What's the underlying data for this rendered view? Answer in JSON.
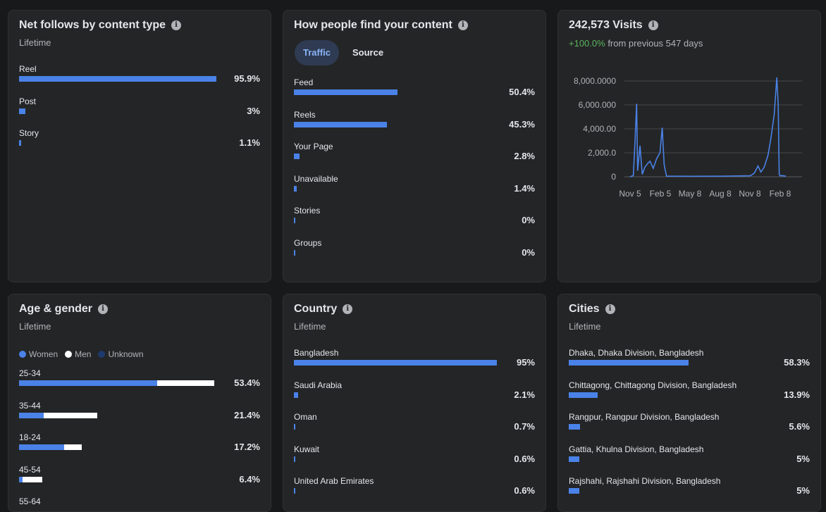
{
  "net_follows": {
    "title": "Net follows by content type",
    "subtitle": "Lifetime",
    "rows": [
      {
        "label": "Reel",
        "value": "95.9%",
        "pct": 95.9
      },
      {
        "label": "Post",
        "value": "3%",
        "pct": 3
      },
      {
        "label": "Story",
        "value": "1.1%",
        "pct": 1.1
      }
    ]
  },
  "find_content": {
    "title": "How people find your content",
    "tabs": [
      "Traffic",
      "Source"
    ],
    "active_tab": "Traffic",
    "rows": [
      {
        "label": "Feed",
        "value": "50.4%",
        "pct": 50.4
      },
      {
        "label": "Reels",
        "value": "45.3%",
        "pct": 45.3
      },
      {
        "label": "Your Page",
        "value": "2.8%",
        "pct": 2.8
      },
      {
        "label": "Unavailable",
        "value": "1.4%",
        "pct": 1.4
      },
      {
        "label": "Stories",
        "value": "0%",
        "pct": 0
      },
      {
        "label": "Groups",
        "value": "0%",
        "pct": 0
      }
    ]
  },
  "visits": {
    "title": "242,573 Visits",
    "change": "+100.0%",
    "change_suffix": "from previous 547 days",
    "colors": {
      "line": "#4a82e8",
      "up": "#5ab55e"
    }
  },
  "chart_data": {
    "type": "line",
    "x_ticks": [
      "Nov 5",
      "Feb 5",
      "May 8",
      "Aug 8",
      "Nov 8",
      "Feb 8"
    ],
    "y_ticks": [
      "0",
      "2,000.0",
      "4,000.00",
      "6,000.000",
      "8,000.0000"
    ],
    "ylim": [
      0,
      8000
    ],
    "grid": true,
    "series": [
      {
        "x": [
          "Nov 5",
          "Nov 15",
          "Nov 20",
          "Nov 25",
          "Nov 28",
          "Dec 5",
          "Dec 12",
          "Dec 20",
          "Dec 28",
          "Jan 5",
          "Jan 15",
          "Jan 25",
          "Feb 5",
          "Feb 12",
          "Feb 18",
          "Feb 25",
          "Mar 5",
          "May 8",
          "Aug 8",
          "Nov 8",
          "Nov 20",
          "Dec 1",
          "Dec 10",
          "Dec 20",
          "Jan 1",
          "Jan 10",
          "Jan 20",
          "Jan 28",
          "Feb 2",
          "Feb 5",
          "Feb 8",
          "Feb 15",
          "Feb 25"
        ],
        "values": [
          0,
          100,
          2900,
          6100,
          500,
          2600,
          200,
          800,
          1100,
          1300,
          700,
          1500,
          2000,
          4100,
          1000,
          50,
          50,
          40,
          50,
          80,
          300,
          900,
          400,
          800,
          1800,
          3200,
          5200,
          8300,
          6000,
          200,
          80,
          100,
          50
        ]
      }
    ]
  },
  "age_gender": {
    "title": "Age & gender",
    "subtitle": "Lifetime",
    "legend": [
      "Women",
      "Men",
      "Unknown"
    ],
    "legend_colors": [
      "#4a82e8",
      "#ffffff",
      "#1d3a6e"
    ],
    "rows": [
      {
        "label": "25-34",
        "value": "53.4%",
        "women_pct": 37.7,
        "men_pct": 15.7
      },
      {
        "label": "35-44",
        "value": "21.4%",
        "women_pct": 6.7,
        "men_pct": 14.7
      },
      {
        "label": "18-24",
        "value": "17.2%",
        "women_pct": 12.4,
        "men_pct": 4.8
      },
      {
        "label": "45-54",
        "value": "6.4%",
        "women_pct": 0.9,
        "men_pct": 5.5
      },
      {
        "label": "55-64",
        "value": "",
        "women_pct": 0,
        "men_pct": 0
      }
    ]
  },
  "country": {
    "title": "Country",
    "subtitle": "Lifetime",
    "rows": [
      {
        "label": "Bangladesh",
        "value": "95%",
        "pct": 95
      },
      {
        "label": "Saudi Arabia",
        "value": "2.1%",
        "pct": 2.1
      },
      {
        "label": "Oman",
        "value": "0.7%",
        "pct": 0.7
      },
      {
        "label": "Kuwait",
        "value": "0.6%",
        "pct": 0.6
      },
      {
        "label": "United Arab Emirates",
        "value": "0.6%",
        "pct": 0.6
      }
    ]
  },
  "cities": {
    "title": "Cities",
    "subtitle": "Lifetime",
    "rows": [
      {
        "label": "Dhaka, Dhaka Division, Bangladesh",
        "value": "58.3%",
        "pct": 58.3
      },
      {
        "label": "Chittagong, Chittagong Division, Bangladesh",
        "value": "13.9%",
        "pct": 13.9
      },
      {
        "label": "Rangpur, Rangpur Division, Bangladesh",
        "value": "5.6%",
        "pct": 5.6
      },
      {
        "label": "Gattia, Khulna Division, Bangladesh",
        "value": "5%",
        "pct": 5
      },
      {
        "label": "Rajshahi, Rajshahi Division, Bangladesh",
        "value": "5%",
        "pct": 5
      }
    ]
  }
}
